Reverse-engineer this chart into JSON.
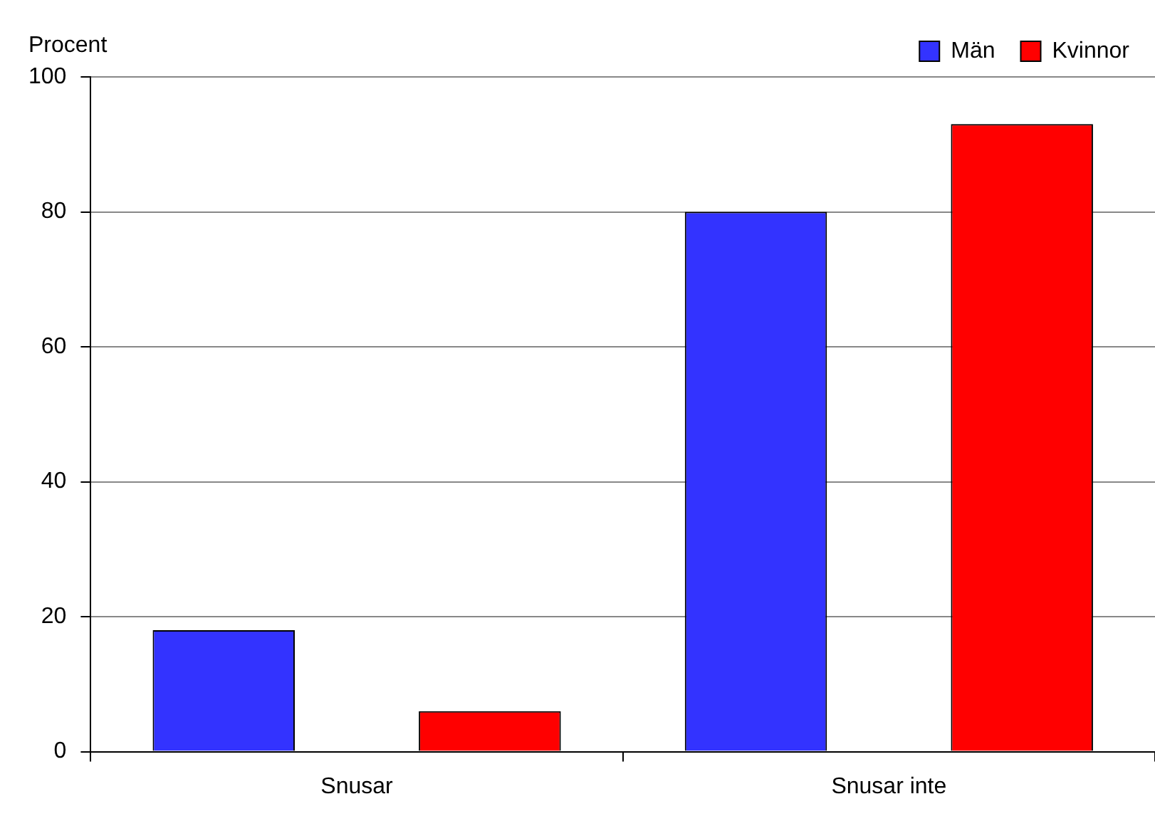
{
  "chart_data": {
    "type": "bar",
    "ylabel": "Procent",
    "categories": [
      "Snusar",
      "Snusar inte"
    ],
    "series": [
      {
        "name": "Män",
        "color": "#3333ff",
        "values": [
          18,
          80
        ]
      },
      {
        "name": "Kvinnor",
        "color": "#ff0000",
        "values": [
          6,
          93
        ]
      }
    ],
    "ylim": [
      0,
      100
    ],
    "yticks": [
      0,
      20,
      40,
      60,
      80,
      100
    ],
    "grid": "y",
    "legend": "top right"
  }
}
